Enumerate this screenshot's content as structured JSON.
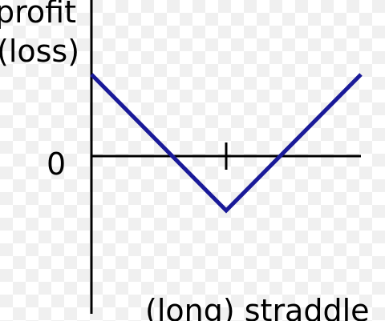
{
  "diagram": {
    "y_label_line1": "profit",
    "y_label_line2": "(loss)",
    "zero_label": "0",
    "x_label": "(long) straddle",
    "colors": {
      "axes": "#000000",
      "payoff": "#1a1a99"
    }
  }
}
